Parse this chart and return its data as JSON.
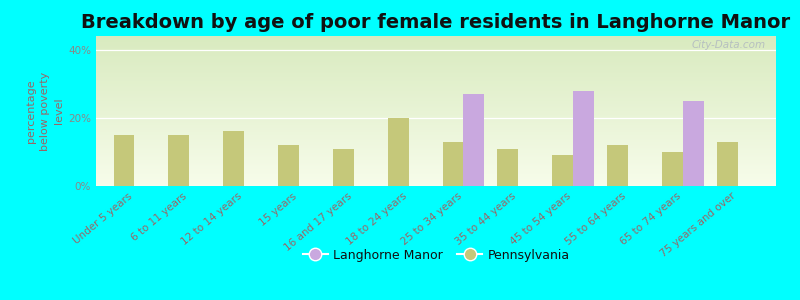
{
  "title": "Breakdown by age of poor female residents in Langhorne Manor",
  "ylabel": "percentage\nbelow poverty\nlevel",
  "background_color": "#00ffff",
  "categories": [
    "Under 5 years",
    "6 to 11 years",
    "12 to 14 years",
    "15 years",
    "16 and 17 years",
    "18 to 24 years",
    "25 to 34 years",
    "35 to 44 years",
    "45 to 54 years",
    "55 to 64 years",
    "65 to 74 years",
    "75 years and over"
  ],
  "langhorne_values": [
    0,
    0,
    0,
    0,
    0,
    0,
    27.0,
    0,
    28.0,
    0,
    25.0,
    0
  ],
  "pennsylvania_values": [
    15.0,
    15.0,
    16.0,
    12.0,
    11.0,
    20.0,
    13.0,
    11.0,
    9.0,
    12.0,
    10.0,
    13.0
  ],
  "langhorne_color": "#c9a8df",
  "pennsylvania_color": "#c5c87a",
  "ylim": [
    0,
    44
  ],
  "yticks": [
    0,
    20,
    40
  ],
  "ytick_labels": [
    "0%",
    "20%",
    "40%"
  ],
  "bar_width": 0.38,
  "legend_langhorne": "Langhorne Manor",
  "legend_pennsylvania": "Pennsylvania",
  "watermark": "City-Data.com",
  "title_fontsize": 14,
  "tick_fontsize": 7.5,
  "ylabel_fontsize": 8,
  "label_color": "#996666",
  "ytick_color": "#888888",
  "title_color": "#111111"
}
